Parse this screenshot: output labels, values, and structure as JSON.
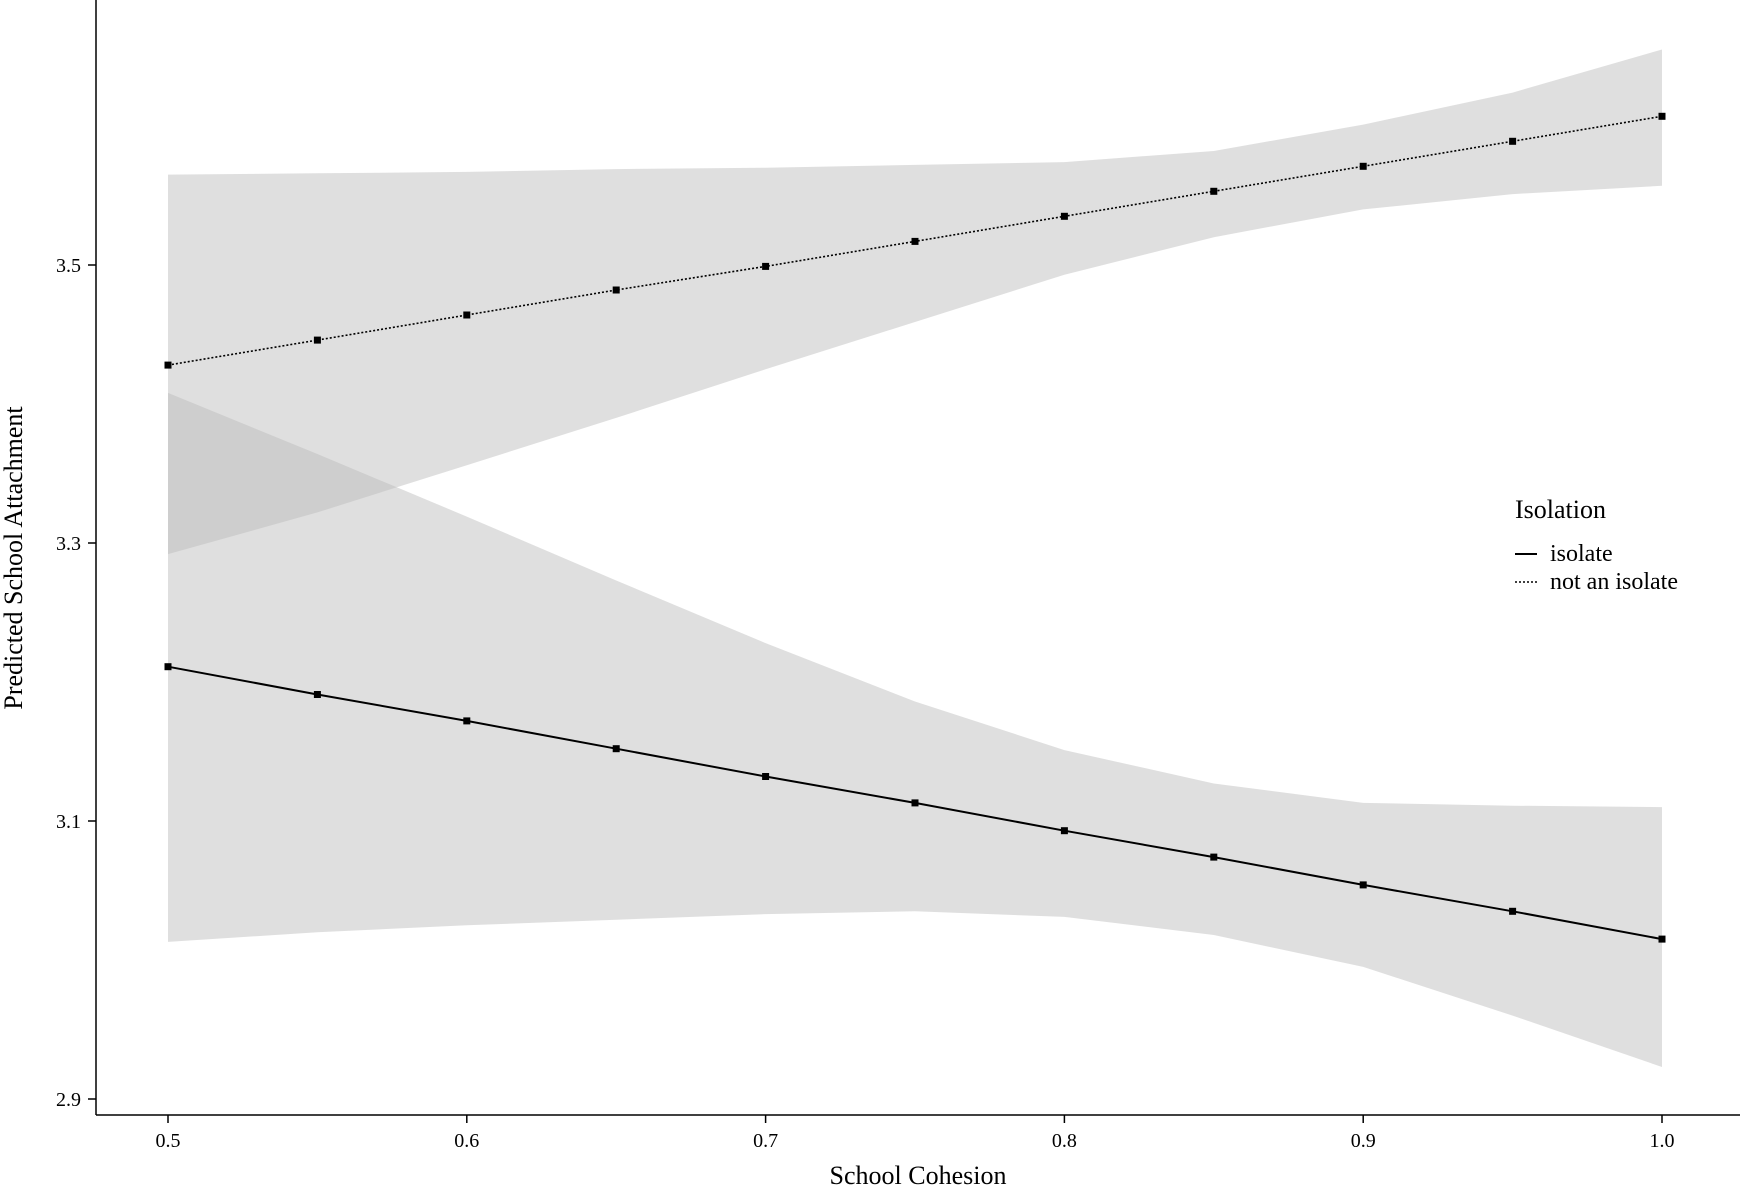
{
  "chart_data": {
    "type": "line",
    "title": "",
    "xlabel": "School Cohesion",
    "ylabel": "Predicted School Attachment",
    "xlim": [
      0.45,
      1.05
    ],
    "ylim": [
      2.895,
      3.69
    ],
    "x_ticks": [
      0.5,
      0.6,
      0.7,
      0.8,
      0.9,
      1.0
    ],
    "x_tick_labels": [
      "0.5",
      "0.6",
      "0.7",
      "0.8",
      "0.9",
      "1.0"
    ],
    "y_ticks": [
      2.9,
      3.1,
      3.3,
      3.5
    ],
    "y_tick_labels": [
      "2.9",
      "3.1",
      "3.3",
      "3.5"
    ],
    "grid": false,
    "legend": {
      "title": "Isolation",
      "position": "right",
      "entries": [
        "isolate",
        "not an isolate"
      ]
    },
    "x": [
      0.5,
      0.55,
      0.6,
      0.65,
      0.7,
      0.75,
      0.8,
      0.85,
      0.9,
      0.95,
      1.0
    ],
    "series": [
      {
        "name": "isolate",
        "line_style": "solid",
        "values": [
          3.211,
          3.191,
          3.172,
          3.152,
          3.132,
          3.113,
          3.093,
          3.074,
          3.054,
          3.035,
          3.015
        ],
        "ci_lower": [
          3.013,
          3.02,
          3.025,
          3.029,
          3.033,
          3.035,
          3.031,
          3.018,
          2.995,
          2.96,
          2.923
        ],
        "ci_upper": [
          3.408,
          3.364,
          3.319,
          3.273,
          3.228,
          3.186,
          3.151,
          3.127,
          3.113,
          3.111,
          3.11
        ]
      },
      {
        "name": "not an isolate",
        "line_style": "dotted",
        "values": [
          3.428,
          3.446,
          3.464,
          3.482,
          3.499,
          3.517,
          3.535,
          3.553,
          3.571,
          3.589,
          3.607
        ],
        "ci_lower": [
          3.292,
          3.322,
          3.356,
          3.39,
          3.425,
          3.459,
          3.493,
          3.52,
          3.54,
          3.551,
          3.557
        ],
        "ci_upper": [
          3.565,
          3.566,
          3.567,
          3.569,
          3.57,
          3.572,
          3.574,
          3.582,
          3.601,
          3.624,
          3.655
        ]
      }
    ],
    "colors": {
      "ribbon": "#bdbdbd",
      "line": "#000000"
    }
  }
}
